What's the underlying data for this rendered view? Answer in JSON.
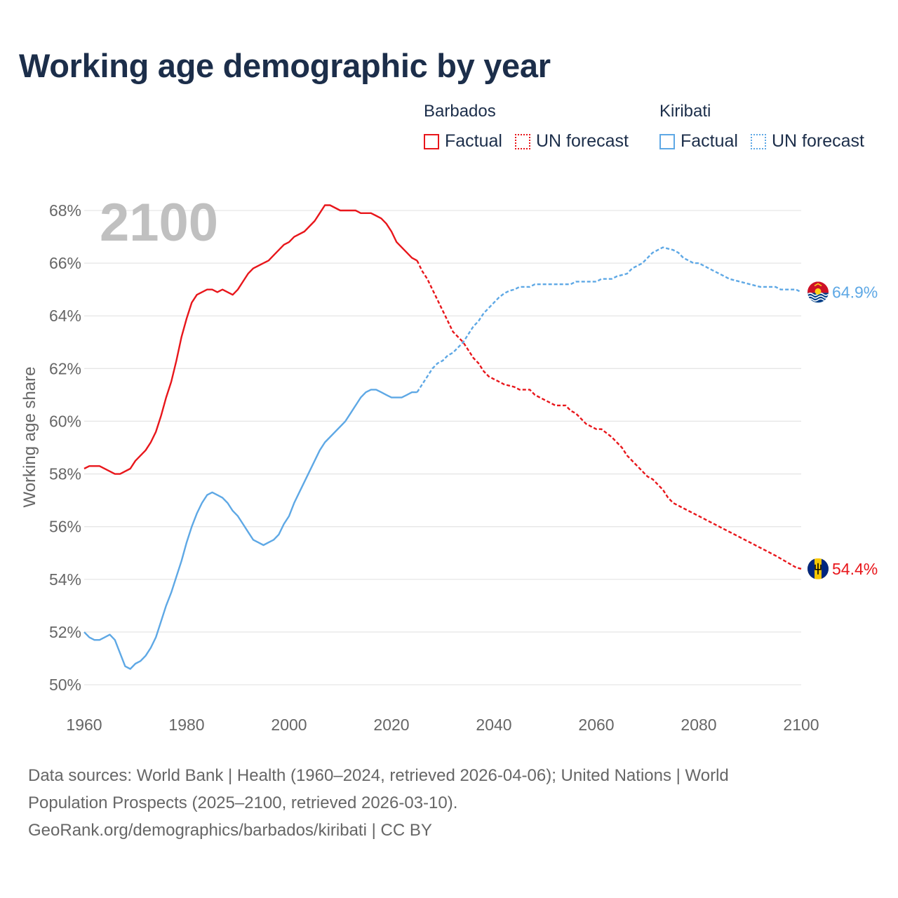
{
  "title": "Working age demographic by year",
  "legend": {
    "groups": [
      {
        "name": "Barbados",
        "factual": "Factual",
        "forecast": "UN forecast",
        "color": "#e8161b"
      },
      {
        "name": "Kiribati",
        "factual": "Factual",
        "forecast": "UN forecast",
        "color": "#5ea8e5"
      }
    ]
  },
  "footer": {
    "line1": "Data sources: World Bank | Health (1960–2024, retrieved 2026-04-06); United Nations | World",
    "line2": "Population Prospects (2025–2100, retrieved 2026-03-10).",
    "line3": "GeoRank.org/demographics/barbados/kiribati | CC BY"
  },
  "colors": {
    "barbados": "#e8161b",
    "kiribati": "#5ea8e5",
    "grid": "#e6e6e6",
    "year_label": "#c0c0c0",
    "title": "#1c2e4a"
  },
  "chart_data": {
    "type": "line",
    "title": "Working age demographic by year",
    "year_label": "2100",
    "xlabel": "",
    "ylabel": "Working age share",
    "xlim": [
      1960,
      2100
    ],
    "ylim": [
      50,
      68
    ],
    "x_ticks": [
      1960,
      1980,
      2000,
      2020,
      2040,
      2060,
      2080,
      2100
    ],
    "x_tick_labels": [
      "1960",
      "1980",
      "2000",
      "2020",
      "2040",
      "2060",
      "2080",
      "2100"
    ],
    "y_ticks": [
      50,
      52,
      54,
      56,
      58,
      60,
      62,
      64,
      66,
      68
    ],
    "y_tick_labels": [
      "50%",
      "52%",
      "54%",
      "56%",
      "58%",
      "60%",
      "62%",
      "64%",
      "66%",
      "68%"
    ],
    "series": [
      {
        "name": "Barbados",
        "color": "#e8161b",
        "end_label": "54.4%",
        "flag": "barbados-flag",
        "factual": [
          [
            1960,
            58.2
          ],
          [
            1961,
            58.3
          ],
          [
            1963,
            58.3
          ],
          [
            1965,
            58.1
          ],
          [
            1966,
            58.0
          ],
          [
            1967,
            58.0
          ],
          [
            1969,
            58.2
          ],
          [
            1970,
            58.5
          ],
          [
            1972,
            58.9
          ],
          [
            1973,
            59.2
          ],
          [
            1974,
            59.6
          ],
          [
            1975,
            60.2
          ],
          [
            1976,
            60.9
          ],
          [
            1977,
            61.5
          ],
          [
            1978,
            62.3
          ],
          [
            1979,
            63.2
          ],
          [
            1980,
            63.9
          ],
          [
            1981,
            64.5
          ],
          [
            1982,
            64.8
          ],
          [
            1984,
            65.0
          ],
          [
            1985,
            65.0
          ],
          [
            1986,
            64.9
          ],
          [
            1987,
            65.0
          ],
          [
            1989,
            64.8
          ],
          [
            1990,
            65.0
          ],
          [
            1991,
            65.3
          ],
          [
            1992,
            65.6
          ],
          [
            1993,
            65.8
          ],
          [
            1995,
            66.0
          ],
          [
            1996,
            66.1
          ],
          [
            1997,
            66.3
          ],
          [
            1998,
            66.5
          ],
          [
            1999,
            66.7
          ],
          [
            2000,
            66.8
          ],
          [
            2001,
            67.0
          ],
          [
            2003,
            67.2
          ],
          [
            2004,
            67.4
          ],
          [
            2005,
            67.6
          ],
          [
            2006,
            67.9
          ],
          [
            2007,
            68.2
          ],
          [
            2008,
            68.2
          ],
          [
            2010,
            68.0
          ],
          [
            2012,
            68.0
          ],
          [
            2013,
            68.0
          ],
          [
            2014,
            67.9
          ],
          [
            2016,
            67.9
          ],
          [
            2017,
            67.8
          ],
          [
            2018,
            67.7
          ],
          [
            2019,
            67.5
          ],
          [
            2020,
            67.2
          ],
          [
            2021,
            66.8
          ],
          [
            2022,
            66.6
          ],
          [
            2023,
            66.4
          ],
          [
            2024,
            66.2
          ],
          [
            2025,
            66.1
          ]
        ],
        "forecast": [
          [
            2025,
            66.1
          ],
          [
            2026,
            65.7
          ],
          [
            2027,
            65.4
          ],
          [
            2028,
            65.0
          ],
          [
            2029,
            64.6
          ],
          [
            2030,
            64.2
          ],
          [
            2031,
            63.8
          ],
          [
            2032,
            63.4
          ],
          [
            2033,
            63.2
          ],
          [
            2034,
            63.0
          ],
          [
            2035,
            62.7
          ],
          [
            2036,
            62.4
          ],
          [
            2037,
            62.2
          ],
          [
            2038,
            61.9
          ],
          [
            2039,
            61.7
          ],
          [
            2040,
            61.6
          ],
          [
            2041,
            61.5
          ],
          [
            2042,
            61.4
          ],
          [
            2043,
            61.35
          ],
          [
            2044,
            61.3
          ],
          [
            2045,
            61.2
          ],
          [
            2047,
            61.2
          ],
          [
            2048,
            61.0
          ],
          [
            2050,
            60.8
          ],
          [
            2052,
            60.6
          ],
          [
            2054,
            60.6
          ],
          [
            2055,
            60.4
          ],
          [
            2056,
            60.3
          ],
          [
            2058,
            59.9
          ],
          [
            2060,
            59.7
          ],
          [
            2061,
            59.7
          ],
          [
            2063,
            59.4
          ],
          [
            2064,
            59.2
          ],
          [
            2065,
            59.0
          ],
          [
            2066,
            58.7
          ],
          [
            2068,
            58.3
          ],
          [
            2070,
            57.9
          ],
          [
            2071,
            57.8
          ],
          [
            2072,
            57.6
          ],
          [
            2073,
            57.4
          ],
          [
            2074,
            57.1
          ],
          [
            2075,
            56.9
          ],
          [
            2080,
            56.4
          ],
          [
            2085,
            55.9
          ],
          [
            2090,
            55.4
          ],
          [
            2095,
            54.9
          ],
          [
            2099,
            54.45
          ],
          [
            2100,
            54.4
          ]
        ]
      },
      {
        "name": "Kiribati",
        "color": "#5ea8e5",
        "end_label": "64.9%",
        "flag": "kiribati-flag",
        "factual": [
          [
            1960,
            52.0
          ],
          [
            1961,
            51.8
          ],
          [
            1962,
            51.7
          ],
          [
            1963,
            51.7
          ],
          [
            1964,
            51.8
          ],
          [
            1965,
            51.9
          ],
          [
            1966,
            51.7
          ],
          [
            1967,
            51.2
          ],
          [
            1968,
            50.7
          ],
          [
            1969,
            50.6
          ],
          [
            1970,
            50.8
          ],
          [
            1971,
            50.9
          ],
          [
            1972,
            51.1
          ],
          [
            1973,
            51.4
          ],
          [
            1974,
            51.8
          ],
          [
            1975,
            52.4
          ],
          [
            1976,
            53.0
          ],
          [
            1977,
            53.5
          ],
          [
            1978,
            54.1
          ],
          [
            1979,
            54.7
          ],
          [
            1980,
            55.4
          ],
          [
            1981,
            56.0
          ],
          [
            1982,
            56.5
          ],
          [
            1983,
            56.9
          ],
          [
            1984,
            57.2
          ],
          [
            1985,
            57.3
          ],
          [
            1986,
            57.2
          ],
          [
            1987,
            57.1
          ],
          [
            1988,
            56.9
          ],
          [
            1989,
            56.6
          ],
          [
            1990,
            56.4
          ],
          [
            1991,
            56.1
          ],
          [
            1992,
            55.8
          ],
          [
            1993,
            55.5
          ],
          [
            1994,
            55.4
          ],
          [
            1995,
            55.3
          ],
          [
            1996,
            55.4
          ],
          [
            1997,
            55.5
          ],
          [
            1998,
            55.7
          ],
          [
            1999,
            56.1
          ],
          [
            2000,
            56.4
          ],
          [
            2001,
            56.9
          ],
          [
            2002,
            57.3
          ],
          [
            2003,
            57.7
          ],
          [
            2004,
            58.1
          ],
          [
            2005,
            58.5
          ],
          [
            2006,
            58.9
          ],
          [
            2007,
            59.2
          ],
          [
            2008,
            59.4
          ],
          [
            2009,
            59.6
          ],
          [
            2010,
            59.8
          ],
          [
            2011,
            60.0
          ],
          [
            2012,
            60.3
          ],
          [
            2013,
            60.6
          ],
          [
            2014,
            60.9
          ],
          [
            2015,
            61.1
          ],
          [
            2016,
            61.2
          ],
          [
            2017,
            61.2
          ],
          [
            2018,
            61.1
          ],
          [
            2019,
            61.0
          ],
          [
            2020,
            60.9
          ],
          [
            2021,
            60.9
          ],
          [
            2022,
            60.9
          ],
          [
            2023,
            61.0
          ],
          [
            2024,
            61.1
          ],
          [
            2025,
            61.1
          ]
        ],
        "forecast": [
          [
            2025,
            61.1
          ],
          [
            2026,
            61.4
          ],
          [
            2027,
            61.7
          ],
          [
            2028,
            62.0
          ],
          [
            2029,
            62.2
          ],
          [
            2030,
            62.3
          ],
          [
            2031,
            62.5
          ],
          [
            2032,
            62.6
          ],
          [
            2033,
            62.8
          ],
          [
            2034,
            63.0
          ],
          [
            2035,
            63.3
          ],
          [
            2036,
            63.6
          ],
          [
            2037,
            63.8
          ],
          [
            2038,
            64.1
          ],
          [
            2039,
            64.3
          ],
          [
            2040,
            64.5
          ],
          [
            2041,
            64.7
          ],
          [
            2042,
            64.85
          ],
          [
            2043,
            64.95
          ],
          [
            2044,
            65.0
          ],
          [
            2045,
            65.1
          ],
          [
            2047,
            65.1
          ],
          [
            2048,
            65.2
          ],
          [
            2050,
            65.2
          ],
          [
            2055,
            65.2
          ],
          [
            2056,
            65.3
          ],
          [
            2060,
            65.3
          ],
          [
            2061,
            65.4
          ],
          [
            2063,
            65.4
          ],
          [
            2064,
            65.5
          ],
          [
            2066,
            65.6
          ],
          [
            2067,
            65.8
          ],
          [
            2069,
            66.0
          ],
          [
            2070,
            66.2
          ],
          [
            2071,
            66.4
          ],
          [
            2073,
            66.6
          ],
          [
            2075,
            66.5
          ],
          [
            2076,
            66.4
          ],
          [
            2077,
            66.2
          ],
          [
            2079,
            66.0
          ],
          [
            2080,
            66.0
          ],
          [
            2083,
            65.7
          ],
          [
            2086,
            65.4
          ],
          [
            2088,
            65.3
          ],
          [
            2090,
            65.2
          ],
          [
            2092,
            65.1
          ],
          [
            2095,
            65.1
          ],
          [
            2096,
            65.0
          ],
          [
            2099,
            65.0
          ],
          [
            2100,
            64.9
          ]
        ]
      }
    ]
  }
}
